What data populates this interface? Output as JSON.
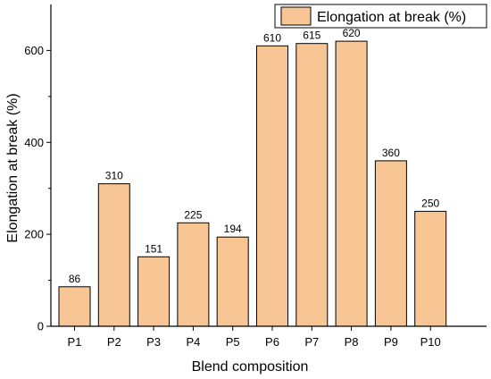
{
  "chart_data": {
    "type": "bar",
    "categories": [
      "P1",
      "P2",
      "P3",
      "P4",
      "P5",
      "P6",
      "P7",
      "P8",
      "P9",
      "P10"
    ],
    "series": [
      {
        "name": "Elongation at break (%)",
        "values": [
          86,
          310,
          151,
          225,
          194,
          610,
          615,
          620,
          360,
          250
        ],
        "color": "#F8C594",
        "data_labels": [
          "86",
          "310",
          "151",
          "225",
          "194",
          "610",
          "615",
          "620",
          "360",
          "250"
        ]
      }
    ],
    "xlabel": "Blend composition",
    "ylabel": "Elongation at break (%)",
    "ylim": [
      0,
      700
    ],
    "yticks": [
      0,
      200,
      400,
      600
    ],
    "ytick_labels": [
      "0",
      "200",
      "400",
      "600"
    ],
    "grid": false,
    "legend_position": "top-right",
    "bar_edge_color": "#000000"
  }
}
